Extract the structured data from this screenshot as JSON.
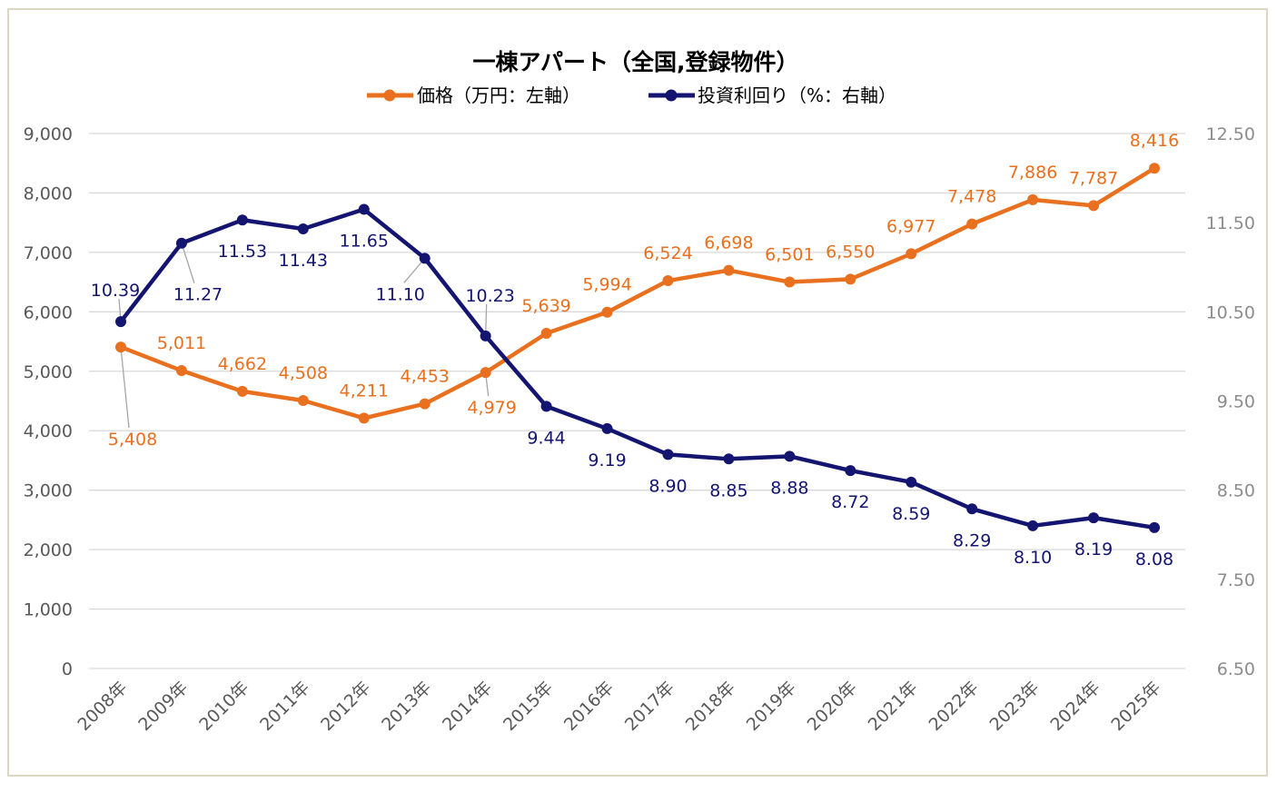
{
  "chart_data": {
    "type": "line",
    "title": "一棟アパート（全国,登録物件）",
    "categories": [
      "2008年",
      "2009年",
      "2010年",
      "2011年",
      "2012年",
      "2013年",
      "2014年",
      "2015年",
      "2016年",
      "2017年",
      "2018年",
      "2019年",
      "2020年",
      "2021年",
      "2022年",
      "2023年",
      "2024年",
      "2025年"
    ],
    "series": [
      {
        "name": "価格（万円：左軸）",
        "axis": "left",
        "color": "#E8701E",
        "values": [
          5408,
          5011,
          4662,
          4508,
          4211,
          4453,
          4979,
          5639,
          5994,
          6524,
          6698,
          6501,
          6550,
          6977,
          7478,
          7886,
          7787,
          8416
        ],
        "labels": [
          "5,408",
          "5,011",
          "4,662",
          "4,508",
          "4,211",
          "4,453",
          "4,979",
          "5,639",
          "5,994",
          "6,524",
          "6,698",
          "6,501",
          "6,550",
          "6,977",
          "7,478",
          "7,886",
          "7,787",
          "8,416"
        ]
      },
      {
        "name": "投資利回り（%：右軸）",
        "axis": "right",
        "color": "#141570",
        "values": [
          10.39,
          11.27,
          11.53,
          11.43,
          11.65,
          11.1,
          10.23,
          9.44,
          9.19,
          8.9,
          8.85,
          8.88,
          8.72,
          8.59,
          8.29,
          8.1,
          8.19,
          8.08
        ],
        "labels": [
          "10.39",
          "11.27",
          "11.53",
          "11.43",
          "11.65",
          "11.10",
          "10.23",
          "9.44",
          "9.19",
          "8.90",
          "8.85",
          "8.88",
          "8.72",
          "8.59",
          "8.29",
          "8.10",
          "8.19",
          "8.08"
        ]
      }
    ],
    "left_axis": {
      "ylim": [
        0,
        9000
      ],
      "ticks": [
        "0",
        "1,000",
        "2,000",
        "3,000",
        "4,000",
        "5,000",
        "6,000",
        "7,000",
        "8,000",
        "9,000"
      ]
    },
    "right_axis": {
      "ylim": [
        6.5,
        12.5
      ],
      "ticks": [
        "6.50",
        "7.50",
        "8.50",
        "9.50",
        "10.50",
        "11.50",
        "12.50"
      ]
    },
    "grid": true,
    "legend_position": "top",
    "tick_color": "#595959",
    "right_tick_color": "#8c8c8c",
    "grid_color": "#d9d9d9",
    "leader_color": "#a6a6a6"
  }
}
